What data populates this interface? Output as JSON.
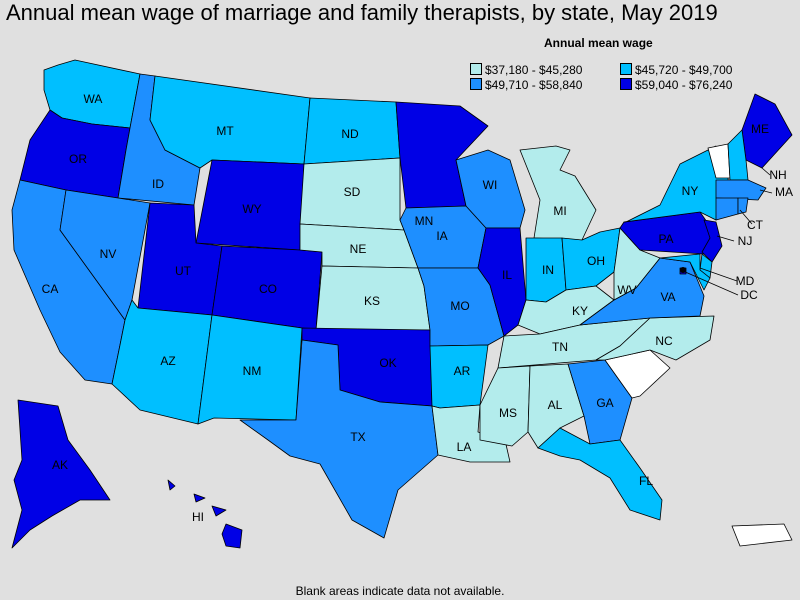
{
  "title": "Annual mean wage of marriage and family therapists, by state, May 2019",
  "legend": {
    "title": "Annual mean wage",
    "items": [
      {
        "range": "$37,180 - $45,280",
        "color": "#b3ecec"
      },
      {
        "range": "$45,720 - $49,700",
        "color": "#00bfff"
      },
      {
        "range": "$49,710 - $58,840",
        "color": "#1e8fff"
      },
      {
        "range": "$59,040 - $76,240",
        "color": "#0000e6"
      }
    ]
  },
  "no_data_color": "#ffffff",
  "footnote": "Blank areas indicate data not available.",
  "states": {
    "WA": {
      "label": "WA",
      "tier": 1
    },
    "OR": {
      "label": "OR",
      "tier": 3
    },
    "CA": {
      "label": "CA",
      "tier": 2
    },
    "ID": {
      "label": "ID",
      "tier": 2
    },
    "NV": {
      "label": "NV",
      "tier": 2
    },
    "MT": {
      "label": "MT",
      "tier": 1
    },
    "WY": {
      "label": "WY",
      "tier": 3
    },
    "UT": {
      "label": "UT",
      "tier": 3
    },
    "AZ": {
      "label": "AZ",
      "tier": 1
    },
    "CO": {
      "label": "CO",
      "tier": 3
    },
    "NM": {
      "label": "NM",
      "tier": 1
    },
    "ND": {
      "label": "ND",
      "tier": 1
    },
    "SD": {
      "label": "SD",
      "tier": 0
    },
    "NE": {
      "label": "NE",
      "tier": 0
    },
    "KS": {
      "label": "KS",
      "tier": 0
    },
    "OK": {
      "label": "OK",
      "tier": 3
    },
    "TX": {
      "label": "TX",
      "tier": 2
    },
    "MN": {
      "label": "MN",
      "tier": 3
    },
    "IA": {
      "label": "IA",
      "tier": 2
    },
    "MO": {
      "label": "MO",
      "tier": 2
    },
    "AR": {
      "label": "AR",
      "tier": 1
    },
    "LA": {
      "label": "LA",
      "tier": 0
    },
    "WI": {
      "label": "WI",
      "tier": 2
    },
    "IL": {
      "label": "IL",
      "tier": 3
    },
    "MI": {
      "label": "MI",
      "tier": 0
    },
    "IN": {
      "label": "IN",
      "tier": 1
    },
    "OH": {
      "label": "OH",
      "tier": 1
    },
    "KY": {
      "label": "KY",
      "tier": 0
    },
    "TN": {
      "label": "TN",
      "tier": 0
    },
    "MS": {
      "label": "MS",
      "tier": 0
    },
    "AL": {
      "label": "AL",
      "tier": 0
    },
    "GA": {
      "label": "GA",
      "tier": 2
    },
    "FL": {
      "label": "FL",
      "tier": 1
    },
    "SC": {
      "label": "",
      "tier": -1
    },
    "NC": {
      "label": "NC",
      "tier": 0
    },
    "VA": {
      "label": "VA",
      "tier": 2
    },
    "WV": {
      "label": "WV",
      "tier": 0
    },
    "PA": {
      "label": "PA",
      "tier": 3
    },
    "NY": {
      "label": "NY",
      "tier": 1
    },
    "ME": {
      "label": "ME",
      "tier": 3
    },
    "VT": {
      "label": "",
      "tier": -1
    },
    "NH": {
      "label": "NH",
      "tier": 1
    },
    "MA": {
      "label": "MA",
      "tier": 2
    },
    "CT": {
      "label": "CT",
      "tier": 2
    },
    "RI": {
      "label": "",
      "tier": 2
    },
    "NJ": {
      "label": "NJ",
      "tier": 3
    },
    "DE": {
      "label": "",
      "tier": 1
    },
    "MD": {
      "label": "MD",
      "tier": 1
    },
    "DC": {
      "label": "DC",
      "tier": 3
    },
    "AK": {
      "label": "AK",
      "tier": 3
    },
    "HI": {
      "label": "HI",
      "tier": 3
    },
    "PR": {
      "label": "",
      "tier": -1
    }
  }
}
